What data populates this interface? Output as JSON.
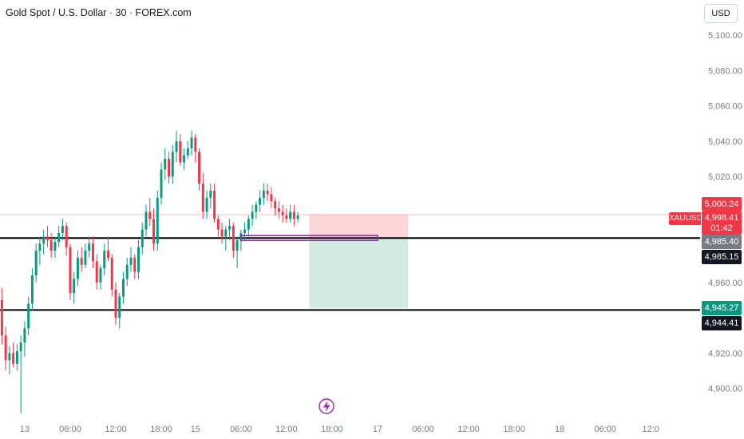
{
  "header": {
    "title": "Gold Spot / U.S. Dollar · 30 · FOREX.com",
    "currency_button": "USD"
  },
  "symbol_tag": "XAUUSD",
  "price_labels": {
    "current_price": "4,998.41",
    "countdown": "01:42",
    "high_marker": "5,000.24",
    "sl_line": "4,985.40",
    "line_upper": "4,985.15",
    "tp_line": "4,945.27",
    "line_lower": "4,944.41"
  },
  "colors": {
    "up": "#089981",
    "down": "#f23645",
    "axis_text": "#787b86",
    "stop_zone": "#fcd6d9",
    "target_zone": "#d1ebe3",
    "highlight_box": "#9c27b0",
    "level_line": "#000000",
    "flash_icon": "#9c27b0"
  },
  "icons": {
    "flash": "lightning-icon"
  },
  "chart_data": {
    "type": "candlestick",
    "title": "Gold Spot / U.S. Dollar · 30 · FOREX.com",
    "y_ticks": [
      "5,100.00",
      "5,080.00",
      "5,060.00",
      "5,040.00",
      "5,020.00",
      "4,960.00",
      "4,920.00",
      "4,900.00"
    ],
    "y_tick_values": [
      5100,
      5080,
      5060,
      5040,
      5020,
      4960,
      4920,
      4900
    ],
    "x_ticks": [
      "13",
      "06:00",
      "12:00",
      "18:00",
      "15",
      "06:00",
      "12:00",
      "18:00",
      "17",
      "06:00",
      "12:00",
      "18:00",
      "18",
      "06:00",
      "12:0"
    ],
    "ylim": [
      4884,
      5120
    ],
    "xlim": [
      -0.5,
      184
    ],
    "x_tick_index": [
      6,
      18,
      30,
      42,
      51,
      63,
      75,
      87,
      99,
      111,
      123,
      135,
      147,
      159,
      171
    ],
    "horizontal_lines": [
      4985.15,
      4944.41
    ],
    "current_price": 4998.41,
    "position": {
      "entry": 4985.2,
      "stop": 4998.8,
      "target": 4945.27,
      "start_index": 81,
      "end_index": 107
    },
    "highlight_box": {
      "low": 4983.8,
      "high": 4986.6,
      "start_index": 63,
      "end_index": 99
    },
    "candles": [
      [
        4950,
        4957,
        4925,
        4930
      ],
      [
        4930,
        4935,
        4910,
        4916
      ],
      [
        4916,
        4924,
        4908,
        4920
      ],
      [
        4920,
        4926,
        4912,
        4914
      ],
      [
        4914,
        4925,
        4910,
        4921
      ],
      [
        4921,
        4930,
        4886,
        4926
      ],
      [
        4926,
        4938,
        4918,
        4934
      ],
      [
        4934,
        4952,
        4930,
        4948
      ],
      [
        4948,
        4968,
        4944,
        4964
      ],
      [
        4964,
        4982,
        4960,
        4978
      ],
      [
        4978,
        4986,
        4970,
        4982
      ],
      [
        4982,
        4990,
        4976,
        4986
      ],
      [
        4986,
        4992,
        4980,
        4984
      ],
      [
        4984,
        4988,
        4974,
        4978
      ],
      [
        4978,
        4986,
        4974,
        4983
      ],
      [
        4983,
        4992,
        4980,
        4988
      ],
      [
        4988,
        4996,
        4984,
        4992
      ],
      [
        4992,
        4994,
        4975,
        4980
      ],
      [
        4980,
        4982,
        4950,
        4954
      ],
      [
        4954,
        4966,
        4948,
        4962
      ],
      [
        4962,
        4978,
        4958,
        4974
      ],
      [
        4974,
        4980,
        4966,
        4970
      ],
      [
        4970,
        4982,
        4968,
        4978
      ],
      [
        4978,
        4986,
        4974,
        4982
      ],
      [
        4982,
        4986,
        4968,
        4972
      ],
      [
        4972,
        4976,
        4956,
        4960
      ],
      [
        4960,
        4970,
        4956,
        4968
      ],
      [
        4968,
        4982,
        4964,
        4978
      ],
      [
        4978,
        4986,
        4972,
        4974
      ],
      [
        4974,
        4976,
        4952,
        4956
      ],
      [
        4956,
        4960,
        4936,
        4940
      ],
      [
        4940,
        4954,
        4934,
        4952
      ],
      [
        4952,
        4966,
        4948,
        4962
      ],
      [
        4962,
        4974,
        4958,
        4970
      ],
      [
        4970,
        4980,
        4966,
        4974
      ],
      [
        4974,
        4976,
        4962,
        4966
      ],
      [
        4966,
        4984,
        4962,
        4980
      ],
      [
        4980,
        4994,
        4976,
        4990
      ],
      [
        4990,
        5004,
        4986,
        5000
      ],
      [
        5000,
        5008,
        4992,
        4996
      ],
      [
        4996,
        5002,
        4978,
        4982
      ],
      [
        4982,
        5012,
        4978,
        5008
      ],
      [
        5008,
        5028,
        5004,
        5024
      ],
      [
        5024,
        5036,
        5018,
        5030
      ],
      [
        5030,
        5034,
        5016,
        5020
      ],
      [
        5020,
        5038,
        5016,
        5034
      ],
      [
        5034,
        5046,
        5028,
        5040
      ],
      [
        5040,
        5044,
        5026,
        5028
      ],
      [
        5028,
        5036,
        5024,
        5032
      ],
      [
        5032,
        5040,
        5030,
        5036
      ],
      [
        5036,
        5046,
        5032,
        5042
      ],
      [
        5042,
        5044,
        5028,
        5034
      ],
      [
        5034,
        5036,
        5012,
        5016
      ],
      [
        5016,
        5022,
        4996,
        5000
      ],
      [
        5000,
        5012,
        4996,
        5008
      ],
      [
        5008,
        5016,
        5002,
        5012
      ],
      [
        5012,
        5016,
        4994,
        4996
      ],
      [
        4996,
        4998,
        4986,
        4990
      ],
      [
        4990,
        4994,
        4982,
        4986
      ],
      [
        4986,
        4992,
        4978,
        4990
      ],
      [
        4990,
        4996,
        4984,
        4992
      ],
      [
        4992,
        4994,
        4974,
        4978
      ],
      [
        4978,
        4986,
        4968,
        4984
      ],
      [
        4984,
        4990,
        4978,
        4988
      ],
      [
        4988,
        4994,
        4984,
        4990
      ],
      [
        4990,
        4998,
        4986,
        4996
      ],
      [
        4996,
        5004,
        4992,
        5000
      ],
      [
        5000,
        5006,
        4996,
        5004
      ],
      [
        5004,
        5012,
        5000,
        5008
      ],
      [
        5008,
        5016,
        5004,
        5012
      ],
      [
        5012,
        5016,
        5006,
        5010
      ],
      [
        5010,
        5014,
        5002,
        5006
      ],
      [
        5006,
        5008,
        4998,
        5002
      ],
      [
        5002,
        5006,
        4996,
        5000
      ],
      [
        5000,
        5004,
        4994,
        4998
      ],
      [
        4998,
        5002,
        4994,
        4996
      ],
      [
        4996,
        5004,
        4994,
        5000
      ],
      [
        5000,
        5004,
        4992,
        4996
      ],
      [
        4996,
        5000,
        4994,
        4998
      ]
    ]
  }
}
